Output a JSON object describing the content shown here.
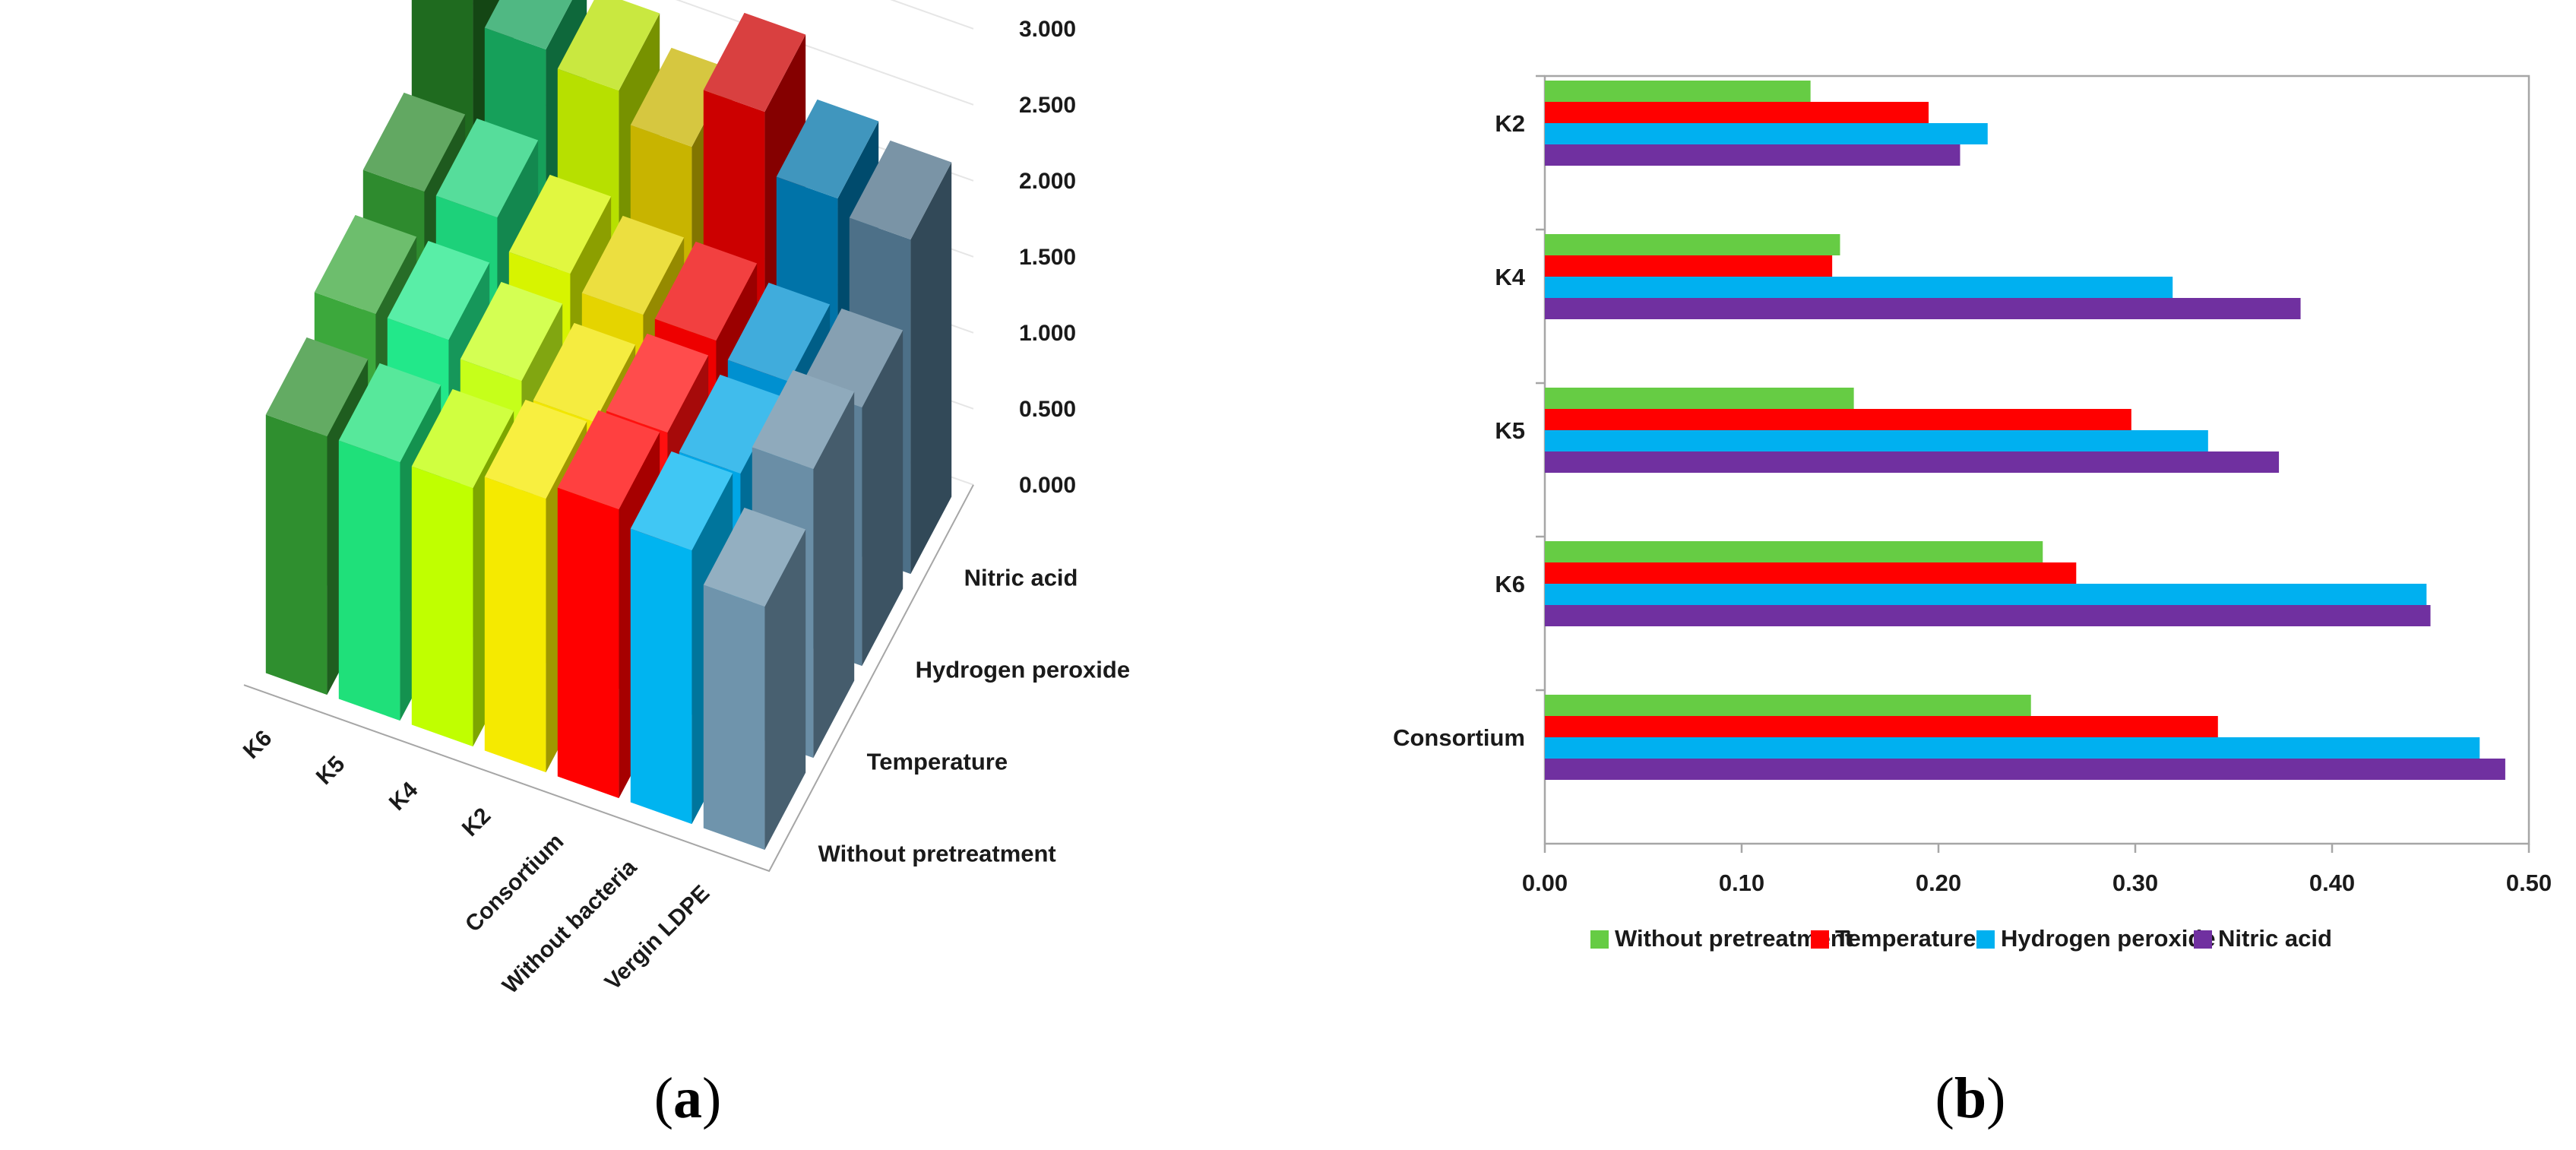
{
  "colors": {
    "without_pretreatment": "#66cc44",
    "temperature": "#ff0000",
    "hydrogen_peroxide": "#00b0f0",
    "nitric_acid": "#7030a0",
    "axis": "#a6a6a6",
    "text": "#1a1a1a"
  },
  "panel_a": {
    "label_parts": [
      "(",
      "a",
      ")"
    ],
    "chart_data": {
      "type": "bar3d",
      "title": "",
      "categories": [
        "K6",
        "K5",
        "K4",
        "K2",
        "Consortium",
        "Without bacteria",
        "Vergin LDPE"
      ],
      "depth_categories": [
        "Nitric acid",
        "Hydrogen peroxide",
        "Temperature",
        "Without pretreatment"
      ],
      "zlim": [
        0,
        3
      ],
      "z_ticks": [
        "0.000",
        "0.500",
        "1.000",
        "1.500",
        "2.000",
        "2.500",
        "3.000"
      ],
      "series": [
        {
          "name": "Nitric acid",
          "values": [
            2.8,
            2.6,
            2.5,
            2.3,
            2.7,
            2.3,
            2.2
          ]
        },
        {
          "name": "Hydrogen peroxide",
          "values": [
            2.1,
            2.1,
            1.9,
            1.8,
            1.8,
            1.7,
            1.7
          ]
        },
        {
          "name": "Temperature",
          "values": [
            1.9,
            1.9,
            1.8,
            1.7,
            1.8,
            1.7,
            1.9
          ]
        },
        {
          "name": "Without pretreatment",
          "values": [
            1.7,
            1.7,
            1.7,
            1.8,
            1.9,
            1.8,
            1.6
          ]
        }
      ]
    }
  },
  "panel_b": {
    "label_parts": [
      "(",
      "b",
      ")"
    ],
    "chart_data": {
      "type": "bar",
      "orientation": "horizontal",
      "title": "",
      "categories": [
        "K2",
        "K4",
        "K5",
        "K6",
        "Consortium"
      ],
      "xlim": [
        0,
        0.5
      ],
      "x_ticks": [
        "0.00",
        "0.10",
        "0.20",
        "0.30",
        "0.40",
        "0.50"
      ],
      "legend_position": "bottom",
      "series": [
        {
          "name": "Without pretreatment",
          "values": [
            0.135,
            0.15,
            0.157,
            0.253,
            0.247
          ]
        },
        {
          "name": "Temperature",
          "values": [
            0.195,
            0.146,
            0.298,
            0.27,
            0.342
          ]
        },
        {
          "name": "Hydrogen peroxide",
          "values": [
            0.225,
            0.319,
            0.337,
            0.448,
            0.475
          ]
        },
        {
          "name": "Nitric acid",
          "values": [
            0.211,
            0.384,
            0.373,
            0.45,
            0.488
          ]
        }
      ]
    }
  }
}
